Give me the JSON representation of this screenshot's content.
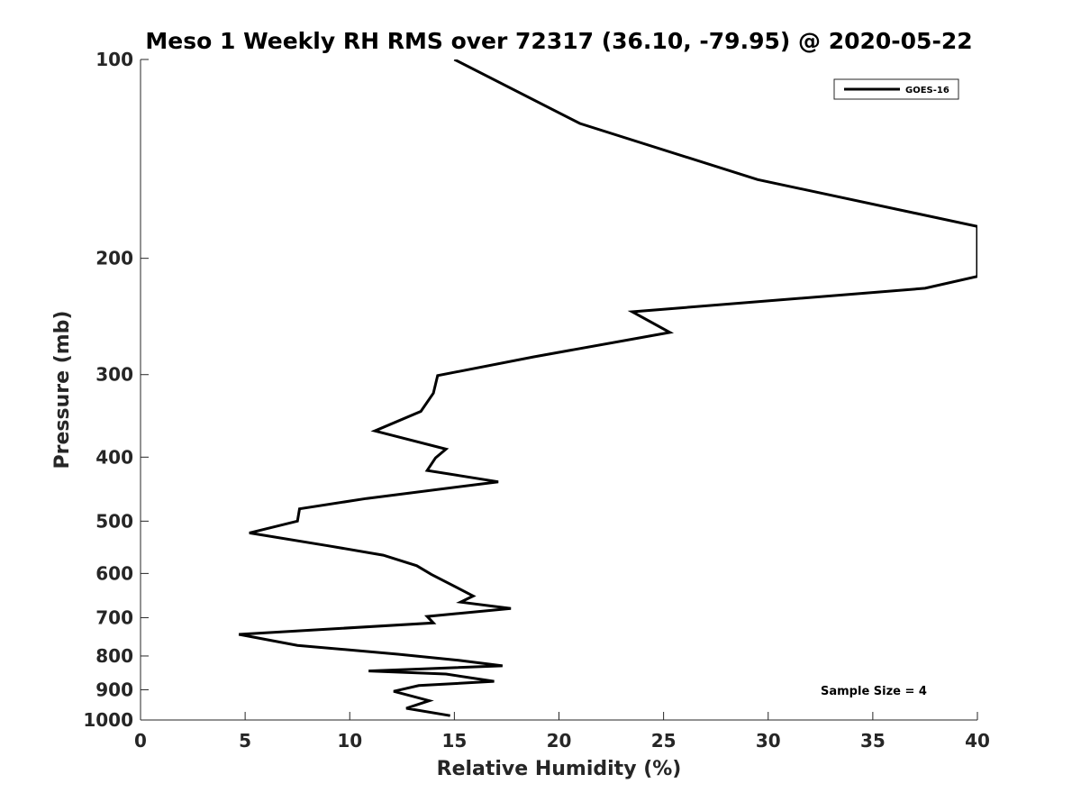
{
  "chart_data": {
    "type": "line",
    "title": "Meso 1 Weekly RH RMS over 72317 (36.10, -79.95) @ 2020-05-22",
    "xlabel": "Relative Humidity (%)",
    "ylabel": "Pressure (mb)",
    "xlim": [
      0,
      40
    ],
    "ylim": [
      100,
      1000
    ],
    "y_scale": "log",
    "y_reversed": true,
    "grid": false,
    "legend_position": "top-right",
    "x_ticks": [
      0,
      5,
      10,
      15,
      20,
      25,
      30,
      35,
      40
    ],
    "y_ticks": [
      100,
      200,
      300,
      400,
      500,
      600,
      700,
      800,
      900,
      1000
    ],
    "annotation": "Sample Size = 4",
    "series": [
      {
        "name": "GOES-16",
        "color": "#000000",
        "x": [
          15.0,
          21.0,
          29.5,
          40.0,
          40.0,
          37.5,
          23.5,
          25.3,
          18.8,
          14.2,
          14.0,
          13.4,
          11.2,
          14.6,
          14.1,
          13.7,
          17.1,
          10.8,
          7.6,
          7.5,
          5.2,
          9.0,
          11.6,
          13.2,
          13.9,
          15.9,
          15.3,
          17.7,
          13.7,
          14.0,
          4.7,
          7.5,
          12.3,
          15.2,
          17.3,
          10.9,
          14.6,
          16.9,
          13.3,
          12.1,
          13.8,
          12.7,
          14.8
        ],
        "y": [
          100,
          125,
          152,
          179,
          213,
          222,
          241,
          259,
          282,
          301,
          320,
          341,
          365,
          389,
          401,
          419,
          436,
          462,
          479,
          500,
          521,
          545,
          563,
          584,
          602,
          649,
          663,
          678,
          697,
          713,
          742,
          771,
          795,
          812,
          828,
          843,
          852,
          874,
          887,
          905,
          935,
          960,
          985
        ]
      }
    ]
  }
}
